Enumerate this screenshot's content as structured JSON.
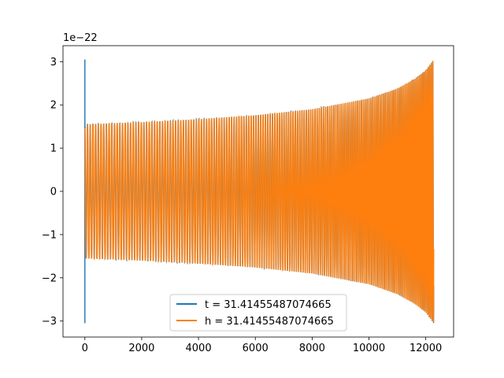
{
  "chart_data": {
    "type": "line",
    "title": "",
    "xlabel": "",
    "ylabel": "",
    "y_offset_label": "1e−22",
    "xlim": [
      -770,
      12980
    ],
    "ylim": [
      -3.37,
      3.37
    ],
    "xticks": [
      0,
      2000,
      4000,
      6000,
      8000,
      10000,
      12000
    ],
    "xtick_labels": [
      "0",
      "2000",
      "4000",
      "6000",
      "8000",
      "10000",
      "12000"
    ],
    "yticks": [
      -3,
      -2,
      -1,
      0,
      1,
      2,
      3
    ],
    "ytick_labels": [
      "−3",
      "−2",
      "−1",
      "0",
      "1",
      "2",
      "3"
    ],
    "grid": false,
    "legend_position": "lower-center",
    "series": [
      {
        "name": "t = 31.41455487074665",
        "color": "#1f77b4",
        "description_points": {
          "spike_x": 0,
          "spike_amplitude": 3.05,
          "start_amplitude": 1.55,
          "end_amplitude": 3.05,
          "x_end": 12280
        }
      },
      {
        "name": "h = 31.41455487074665",
        "color": "#ff7f0e",
        "description_points": {
          "start_x": 0,
          "start_amplitude": 1.55,
          "end_amplitude": 3.05,
          "x_end": 12280
        }
      }
    ],
    "envelope": {
      "x": [
        0,
        2000,
        4000,
        6000,
        8000,
        10000,
        11000,
        11600,
        12000,
        12280
      ],
      "amplitude": [
        1.55,
        1.6,
        1.67,
        1.76,
        1.9,
        2.15,
        2.38,
        2.6,
        2.8,
        3.05
      ]
    }
  }
}
